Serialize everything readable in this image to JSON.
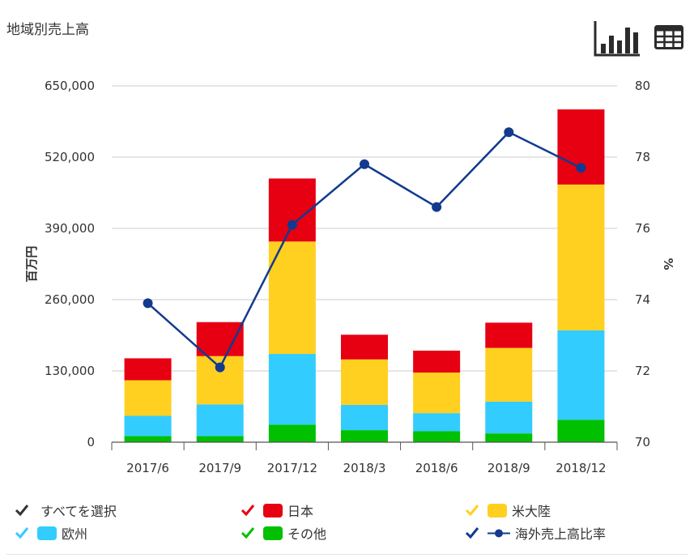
{
  "page": {
    "title": "地域別売上高"
  },
  "toolbar": {
    "chart_icon": "bar-chart-icon",
    "table_icon": "table-icon"
  },
  "colors": {
    "japan": "#e60012",
    "america": "#ffd020",
    "europe": "#33ccff",
    "other": "#00c000",
    "ratio": "#123a8e",
    "all_check": "#333333"
  },
  "legend": {
    "select_all": "すべてを選択",
    "items": [
      "日本",
      "米大陸",
      "欧州",
      "その他",
      "海外売上高比率"
    ]
  },
  "chart_data": {
    "type": "bar",
    "stacked": true,
    "categories": [
      "2017/6",
      "2017/9",
      "2017/12",
      "2018/3",
      "2018/6",
      "2018/9",
      "2018/12"
    ],
    "series": [
      {
        "name": "その他",
        "values": [
          11000,
          11000,
          32000,
          22000,
          20000,
          16000,
          41000
        ]
      },
      {
        "name": "欧州",
        "values": [
          37000,
          58000,
          129000,
          46000,
          33000,
          58000,
          163000
        ]
      },
      {
        "name": "米大陸",
        "values": [
          65000,
          88000,
          205000,
          83000,
          74000,
          98000,
          266000
        ]
      },
      {
        "name": "日本",
        "values": [
          40000,
          62000,
          115000,
          45000,
          40000,
          46000,
          137000
        ]
      }
    ],
    "line_series": {
      "name": "海外売上高比率",
      "axis": "right",
      "values": [
        73.9,
        72.1,
        76.1,
        77.8,
        76.6,
        78.7,
        77.7
      ]
    },
    "ylabel": "百万円",
    "y2label": "%",
    "ylim": [
      0,
      650000
    ],
    "y2lim": [
      70,
      80
    ],
    "yticks": [
      0,
      130000,
      260000,
      390000,
      520000,
      650000
    ],
    "ytick_labels": [
      "0",
      "130,000",
      "260,000",
      "390,000",
      "520,000",
      "650,000"
    ],
    "y2ticks": [
      70,
      72,
      74,
      76,
      78,
      80
    ],
    "y2tick_labels": [
      "70",
      "72",
      "74",
      "76",
      "78",
      "80"
    ],
    "grid": true
  }
}
